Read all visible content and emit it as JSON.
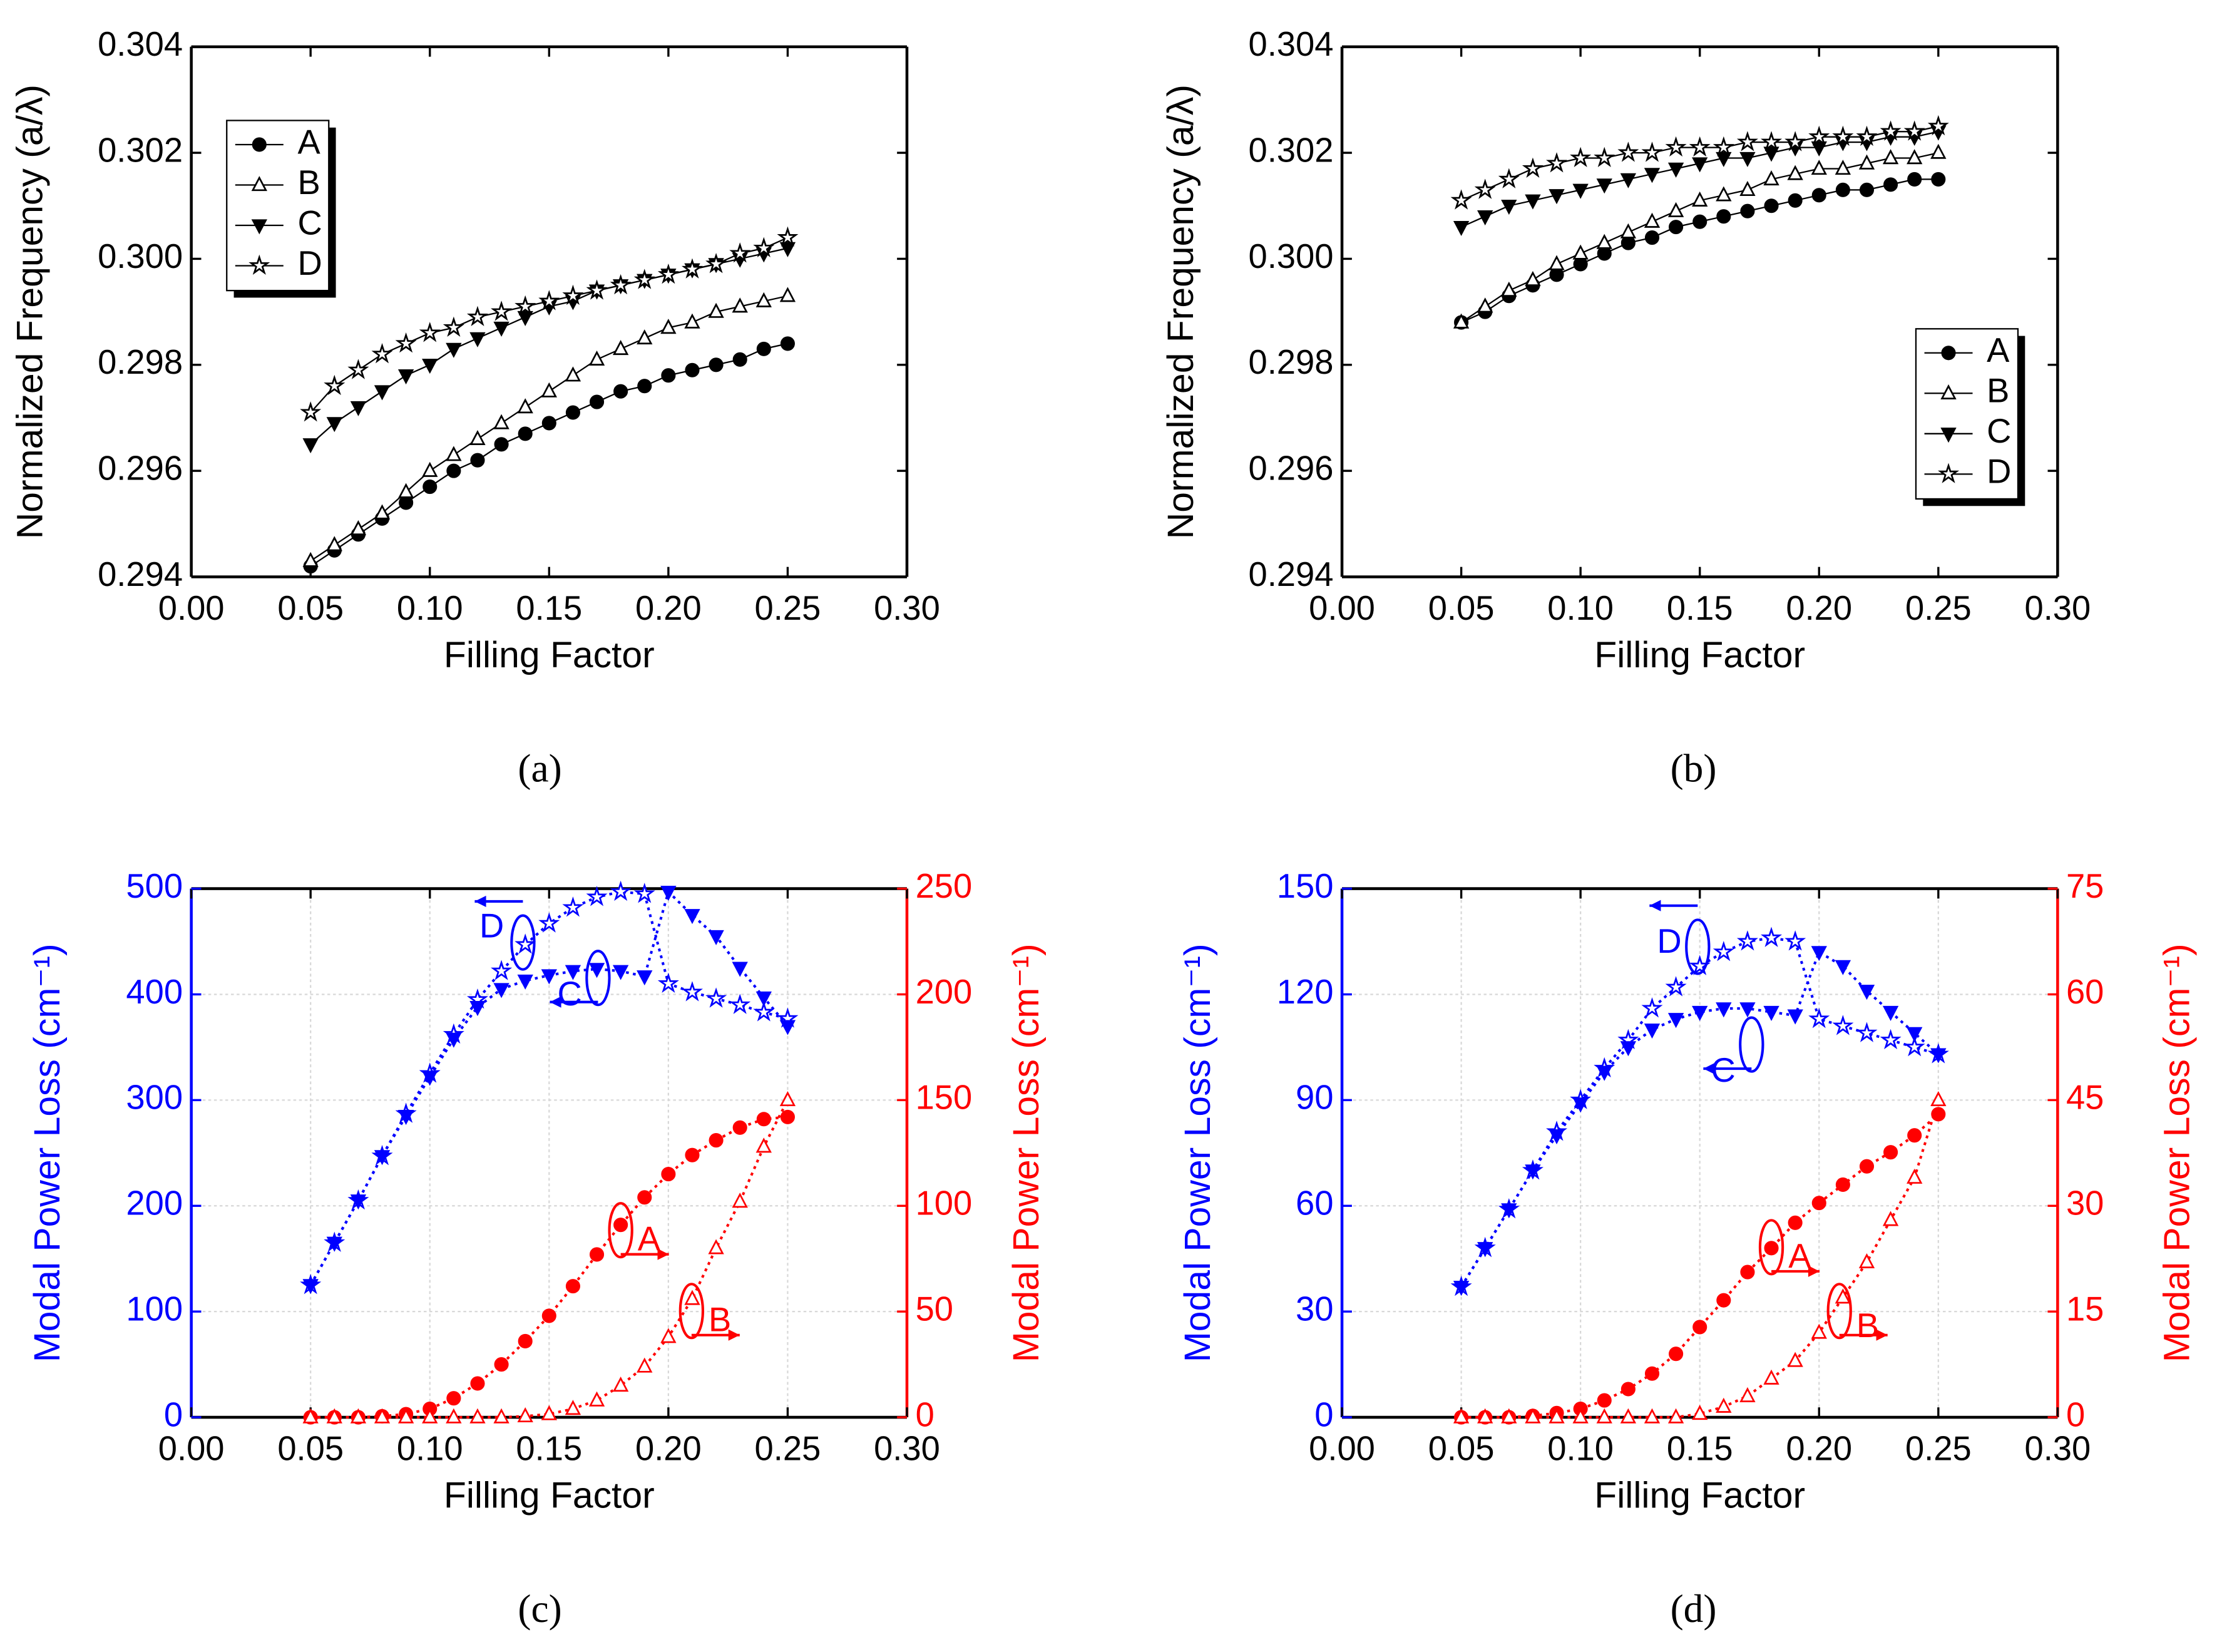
{
  "chart_data": [
    {
      "type": "line",
      "label": "(a)",
      "xlabel": "Filling Factor",
      "ylabel": "Normalized Frequency (a/λ)",
      "xlim": [
        0,
        0.3
      ],
      "xticks": [
        {
          "value": 0,
          "label": "0.00"
        },
        0.05,
        {
          "value": 0.1,
          "label": "0.10"
        },
        0.15,
        {
          "value": 0.2,
          "label": "0.20"
        },
        0.25,
        {
          "value": 0.3,
          "label": "0.30"
        }
      ],
      "ylim": [
        0.294,
        0.304
      ],
      "yticks": [
        0.294,
        0.296,
        0.298,
        {
          "value": 0.3,
          "label": "0.300"
        },
        0.302,
        0.304
      ],
      "grid": false,
      "legend": "upper left",
      "line_style": "solid",
      "x": [
        0.05,
        0.06,
        0.07,
        0.08,
        0.09,
        0.1,
        0.11,
        0.12,
        0.13,
        0.14,
        0.15,
        0.16,
        0.17,
        0.18,
        0.19,
        0.2,
        0.21,
        0.22,
        0.23,
        0.24,
        0.25
      ],
      "series": [
        {
          "name": "A",
          "color": "#000000",
          "marker": "circle",
          "values": [
            0.2942,
            0.2945,
            0.2948,
            0.2951,
            0.2954,
            0.2957,
            0.296,
            0.2962,
            0.2965,
            0.2967,
            0.2969,
            0.2971,
            0.2973,
            0.2975,
            0.2976,
            0.2978,
            0.2979,
            0.298,
            0.2981,
            0.2983,
            0.2984
          ]
        },
        {
          "name": "B",
          "color": "#000000",
          "marker": "triangle-open",
          "values": [
            0.2943,
            0.2946,
            0.2949,
            0.2952,
            0.2956,
            0.296,
            0.2963,
            0.2966,
            0.2969,
            0.2972,
            0.2975,
            0.2978,
            0.2981,
            0.2983,
            0.2985,
            0.2987,
            0.2988,
            0.299,
            0.2991,
            0.2992,
            0.2993
          ]
        },
        {
          "name": "C",
          "color": "#000000",
          "marker": "triangle-down",
          "values": [
            0.2965,
            0.2969,
            0.2972,
            0.2975,
            0.2978,
            0.298,
            0.2983,
            0.2985,
            0.2987,
            0.2989,
            0.2991,
            0.2992,
            0.2994,
            0.2995,
            0.2996,
            0.2997,
            0.2998,
            0.2999,
            0.3,
            0.3001,
            0.3002
          ]
        },
        {
          "name": "D",
          "color": "#000000",
          "marker": "star-open",
          "values": [
            0.2971,
            0.2976,
            0.2979,
            0.2982,
            0.2984,
            0.2986,
            0.2987,
            0.2989,
            0.299,
            0.2991,
            0.2992,
            0.2993,
            0.2994,
            0.2995,
            0.2996,
            0.2997,
            0.2998,
            0.2999,
            0.3001,
            0.3002,
            0.3004
          ]
        }
      ]
    },
    {
      "type": "line",
      "label": "(b)",
      "xlabel": "Filling Factor",
      "ylabel": "Normalized Frequency (a/λ)",
      "xlim": [
        0,
        0.3
      ],
      "xticks": [
        {
          "value": 0,
          "label": "0.00"
        },
        0.05,
        {
          "value": 0.1,
          "label": "0.10"
        },
        0.15,
        {
          "value": 0.2,
          "label": "0.20"
        },
        0.25,
        {
          "value": 0.3,
          "label": "0.30"
        }
      ],
      "ylim": [
        0.294,
        0.304
      ],
      "yticks": [
        0.294,
        0.296,
        0.298,
        {
          "value": 0.3,
          "label": "0.300"
        },
        0.302,
        0.304
      ],
      "grid": false,
      "legend": "lower right",
      "line_style": "solid",
      "x": [
        0.05,
        0.06,
        0.07,
        0.08,
        0.09,
        0.1,
        0.11,
        0.12,
        0.13,
        0.14,
        0.15,
        0.16,
        0.17,
        0.18,
        0.19,
        0.2,
        0.21,
        0.22,
        0.23,
        0.24,
        0.25
      ],
      "series": [
        {
          "name": "A",
          "color": "#000000",
          "marker": "circle",
          "values": [
            0.2988,
            0.299,
            0.2993,
            0.2995,
            0.2997,
            0.2999,
            0.3001,
            0.3003,
            0.3004,
            0.3006,
            0.3007,
            0.3008,
            0.3009,
            0.301,
            0.3011,
            0.3012,
            0.3013,
            0.3013,
            0.3014,
            0.3015,
            0.3015
          ]
        },
        {
          "name": "B",
          "color": "#000000",
          "marker": "triangle-open",
          "values": [
            0.2988,
            0.2991,
            0.2994,
            0.2996,
            0.2999,
            0.3001,
            0.3003,
            0.3005,
            0.3007,
            0.3009,
            0.3011,
            0.3012,
            0.3013,
            0.3015,
            0.3016,
            0.3017,
            0.3017,
            0.3018,
            0.3019,
            0.3019,
            0.302
          ]
        },
        {
          "name": "C",
          "color": "#000000",
          "marker": "triangle-down",
          "values": [
            0.3006,
            0.3008,
            0.301,
            0.3011,
            0.3012,
            0.3013,
            0.3014,
            0.3015,
            0.3016,
            0.3017,
            0.3018,
            0.3019,
            0.3019,
            0.302,
            0.3021,
            0.3021,
            0.3022,
            0.3022,
            0.3023,
            0.3023,
            0.3024
          ]
        },
        {
          "name": "D",
          "color": "#000000",
          "marker": "star-open",
          "values": [
            0.3011,
            0.3013,
            0.3015,
            0.3017,
            0.3018,
            0.3019,
            0.3019,
            0.302,
            0.302,
            0.3021,
            0.3021,
            0.3021,
            0.3022,
            0.3022,
            0.3022,
            0.3023,
            0.3023,
            0.3023,
            0.3024,
            0.3024,
            0.3025
          ]
        }
      ]
    },
    {
      "type": "line",
      "label": "(c)",
      "xlabel": "Filling Factor",
      "ylabel": "Modal Power Loss (cm⁻¹)",
      "y2label": "Modal Power Loss (cm⁻¹)",
      "xlim": [
        0,
        0.3
      ],
      "xticks": [
        {
          "value": 0,
          "label": "0.00"
        },
        0.05,
        {
          "value": 0.1,
          "label": "0.10"
        },
        0.15,
        {
          "value": 0.2,
          "label": "0.20"
        },
        0.25,
        {
          "value": 0.3,
          "label": "0.30"
        }
      ],
      "ylim": [
        0,
        500
      ],
      "yticks": [
        0,
        100,
        200,
        300,
        400,
        500
      ],
      "y2lim": [
        0,
        250
      ],
      "y2ticks": [
        0,
        50,
        100,
        150,
        200,
        250
      ],
      "ycolor": "#0000ff",
      "y2color": "#ff0000",
      "grid": true,
      "line_style": "dotted",
      "annotations": [
        "D",
        "C",
        "A",
        "B"
      ],
      "x": [
        0.05,
        0.06,
        0.07,
        0.08,
        0.09,
        0.1,
        0.11,
        0.12,
        0.13,
        0.14,
        0.15,
        0.16,
        0.17,
        0.18,
        0.19,
        0.2,
        0.21,
        0.22,
        0.23,
        0.24,
        0.25
      ],
      "series": [
        {
          "name": "D",
          "color": "#0000ff",
          "marker": "star-open",
          "values": [
            125,
            165,
            205,
            247,
            287,
            325,
            362,
            395,
            422,
            447,
            467,
            482,
            492,
            497,
            495,
            410,
            402,
            396,
            390,
            383,
            377
          ]
        },
        {
          "name": "C",
          "color": "#0000ff",
          "marker": "triangle-down",
          "values": [
            125,
            165,
            205,
            247,
            285,
            322,
            358,
            388,
            405,
            413,
            418,
            422,
            424,
            422,
            417,
            497,
            475,
            455,
            425,
            397,
            370
          ]
        },
        {
          "name": "A",
          "color": "#ff0000",
          "marker": "circle",
          "axis": "y2",
          "values": [
            0,
            0,
            0,
            0.5,
            1.5,
            4,
            9,
            16,
            25,
            36,
            48,
            62,
            77,
            91,
            104,
            115,
            124,
            131,
            137,
            141,
            142
          ]
        },
        {
          "name": "B",
          "color": "#ff0000",
          "marker": "triangle-open",
          "axis": "y2",
          "values": [
            0,
            0,
            0,
            0,
            0,
            0,
            0,
            0,
            0,
            0.5,
            1.5,
            4,
            8,
            15,
            24,
            38,
            56,
            80,
            102,
            128,
            150
          ]
        }
      ]
    },
    {
      "type": "line",
      "label": "(d)",
      "xlabel": "Filling Factor",
      "ylabel": "Modal Power Loss (cm⁻¹)",
      "y2label": "Modal Power Loss (cm⁻¹)",
      "xlim": [
        0,
        0.3
      ],
      "xticks": [
        {
          "value": 0,
          "label": "0.00"
        },
        0.05,
        {
          "value": 0.1,
          "label": "0.10"
        },
        0.15,
        {
          "value": 0.2,
          "label": "0.20"
        },
        0.25,
        {
          "value": 0.3,
          "label": "0.30"
        }
      ],
      "ylim": [
        0,
        150
      ],
      "yticks": [
        0,
        30,
        60,
        90,
        120,
        150
      ],
      "y2lim": [
        0,
        75
      ],
      "y2ticks": [
        0,
        15,
        30,
        45,
        60,
        75
      ],
      "ycolor": "#0000ff",
      "y2color": "#ff0000",
      "grid": true,
      "line_style": "dotted",
      "annotations": [
        "D",
        "C",
        "A",
        "B"
      ],
      "x": [
        0.05,
        0.06,
        0.07,
        0.08,
        0.09,
        0.1,
        0.11,
        0.12,
        0.13,
        0.14,
        0.15,
        0.16,
        0.17,
        0.18,
        0.19,
        0.2,
        0.21,
        0.22,
        0.23,
        0.24,
        0.25
      ],
      "series": [
        {
          "name": "D",
          "color": "#0000ff",
          "marker": "star-open",
          "values": [
            37,
            48,
            59,
            70,
            81,
            90,
            99,
            107,
            116,
            122,
            128,
            132,
            135,
            136,
            135,
            113,
            111,
            109,
            107,
            105,
            103
          ]
        },
        {
          "name": "C",
          "color": "#0000ff",
          "marker": "triangle-down",
          "values": [
            37,
            48,
            59,
            70,
            80,
            89,
            98,
            105,
            110,
            113,
            115,
            116,
            116,
            115,
            114,
            132,
            128,
            121,
            115,
            109,
            103
          ]
        },
        {
          "name": "A",
          "color": "#ff0000",
          "marker": "circle",
          "axis": "y2",
          "values": [
            0,
            0,
            0,
            0.2,
            0.6,
            1.2,
            2.4,
            4,
            6.2,
            9,
            12.8,
            16.6,
            20.6,
            24,
            27.6,
            30.4,
            33,
            35.6,
            37.6,
            40,
            43
          ]
        },
        {
          "name": "B",
          "color": "#ff0000",
          "marker": "triangle-open",
          "axis": "y2",
          "values": [
            0,
            0,
            0,
            0,
            0,
            0,
            0,
            0,
            0,
            0,
            0.5,
            1.5,
            3,
            5.5,
            8,
            12,
            17,
            22,
            28,
            34,
            45
          ]
        }
      ]
    }
  ]
}
